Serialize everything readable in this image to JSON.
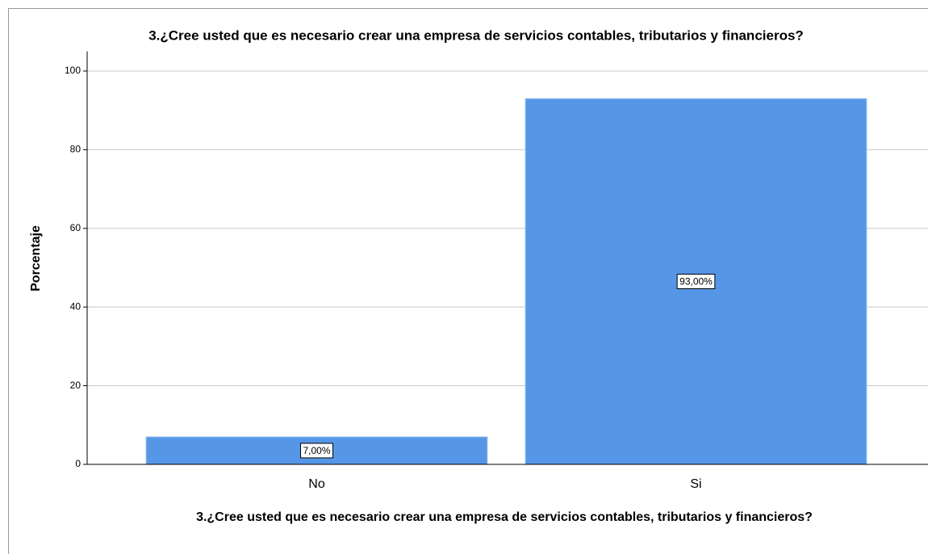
{
  "chart_data": {
    "type": "bar",
    "title": "3.¿Cree usted que es necesario crear una empresa de servicios contables, tributarios y financieros?",
    "x_label": "3.¿Cree usted que es necesario crear una empresa de servicios contables, tributarios y financieros?",
    "y_label": "Porcentaje",
    "categories": [
      "No",
      "Si"
    ],
    "values": [
      7,
      93
    ],
    "value_labels": [
      "7,00%",
      "93,00%"
    ],
    "color": "#5596e6",
    "ylim": [
      0,
      105
    ],
    "yticks": [
      0,
      20,
      40,
      60,
      80,
      100
    ],
    "grid": true
  }
}
